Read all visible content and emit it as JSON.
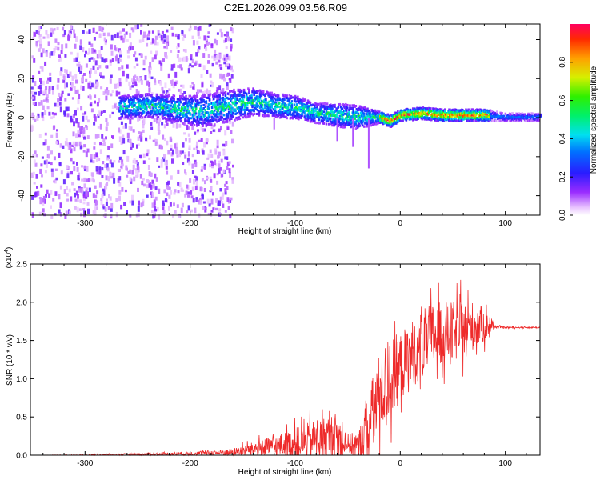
{
  "title": "C2E1.2026.099.03.56.R09",
  "chart_data": [
    {
      "type": "heatmap",
      "xlabel": "Height of straight line (km)",
      "ylabel": "Frequency (Hz)",
      "xlim": [
        -352,
        133
      ],
      "ylim": [
        -50,
        48
      ],
      "xticks": [
        -300,
        -200,
        -100,
        0,
        100
      ],
      "xtick_labels": [
        "-300",
        "-200",
        "-100",
        "0",
        "100"
      ],
      "yticks": [
        -40,
        -20,
        0,
        20,
        40
      ],
      "ytick_labels": [
        "-40",
        "-20",
        "0",
        "20",
        "40"
      ],
      "colorbar": {
        "label": "Normalized spectral amplitude",
        "range": [
          0,
          1
        ],
        "ticks": [
          0.0,
          0.2,
          0.4,
          0.6,
          0.8
        ],
        "tick_labels": [
          "0.0",
          "0.2",
          "0.4",
          "0.6",
          "0.8"
        ],
        "colormap": "rainbow (violet-blue-cyan-green-yellow-red)"
      },
      "ridge": {
        "description": "Main spectral ridge (frequency centre vs height)",
        "x": [
          -265,
          -240,
          -210,
          -190,
          -160,
          -140,
          -120,
          -100,
          -80,
          -60,
          -40,
          -20,
          -10,
          0,
          20,
          40,
          60,
          80,
          100,
          133
        ],
        "y": [
          5,
          6,
          4,
          3,
          6,
          8,
          6,
          5,
          2,
          1,
          0,
          0,
          -2,
          1,
          2,
          1,
          1,
          1,
          0,
          0
        ],
        "halfwidth_hz": [
          6,
          6,
          7,
          8,
          8,
          7,
          6,
          6,
          5,
          6,
          6,
          3,
          3,
          3,
          3,
          3,
          3,
          3,
          2,
          2
        ]
      },
      "noise_region": {
        "x_start": -352,
        "x_end": -160,
        "description": "scattered low-amplitude noise across all frequencies"
      }
    },
    {
      "type": "line",
      "xlabel": "Height of straight line (km)",
      "ylabel": "SNR (10 * v/v)",
      "scale_label": "(x10^4)",
      "scale_label_base": "(x10",
      "scale_label_exp": "4",
      "scale_label_close": ")",
      "xlim": [
        -352,
        133
      ],
      "ylim": [
        0,
        2.5
      ],
      "xticks": [
        -300,
        -200,
        -100,
        0,
        100
      ],
      "xtick_labels": [
        "-300",
        "-200",
        "-100",
        "0",
        "100"
      ],
      "yticks": [
        0.0,
        0.5,
        1.0,
        1.5,
        2.0,
        2.5
      ],
      "ytick_labels": [
        "0.0",
        "0.5",
        "1.0",
        "1.5",
        "2.0",
        "2.5"
      ],
      "series": [
        {
          "name": "SNR",
          "color": "#ee2a2a",
          "x": [
            -352,
            -300,
            -250,
            -200,
            -160,
            -140,
            -120,
            -100,
            -80,
            -60,
            -50,
            -40,
            -30,
            -20,
            -10,
            0,
            10,
            20,
            30,
            40,
            50,
            60,
            70,
            80,
            90,
            100,
            133
          ],
          "y": [
            0.0,
            0.0,
            0.01,
            0.02,
            0.04,
            0.08,
            0.12,
            0.15,
            0.2,
            0.25,
            0.15,
            0.12,
            0.4,
            0.8,
            1.0,
            1.15,
            1.3,
            1.45,
            1.55,
            1.6,
            1.6,
            1.65,
            1.7,
            1.7,
            1.68,
            1.67,
            1.67
          ],
          "spread": [
            0.0,
            0.01,
            0.02,
            0.03,
            0.05,
            0.1,
            0.15,
            0.22,
            0.3,
            0.35,
            0.15,
            0.2,
            0.5,
            0.6,
            0.6,
            0.5,
            0.5,
            0.5,
            0.5,
            0.45,
            0.45,
            0.4,
            0.35,
            0.25,
            0.02,
            0.01,
            0.01
          ]
        }
      ]
    }
  ]
}
